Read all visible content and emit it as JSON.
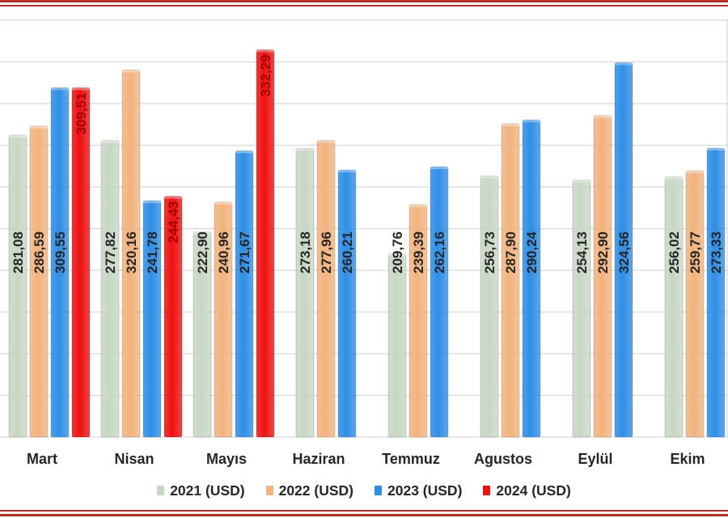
{
  "chart_data": {
    "type": "bar",
    "categories": [
      "Mart",
      "Nisan",
      "Mayıs",
      "Haziran",
      "Temmuz",
      "Agustos",
      "Eylül",
      "Ekim"
    ],
    "series": [
      {
        "name": "2021 (USD)",
        "color": "#c8d7c4",
        "values": [
          281.08,
          277.82,
          222.9,
          273.18,
          209.76,
          256.73,
          254.13,
          256.02
        ],
        "labels": [
          "281,08",
          "277,82",
          "222,90",
          "273,18",
          "209,76",
          "256,73",
          "254,13",
          "256,02"
        ]
      },
      {
        "name": "2022 (USD)",
        "color": "#f2b37e",
        "values": [
          286.59,
          320.16,
          240.96,
          277.96,
          239.39,
          287.9,
          292.9,
          259.77
        ],
        "labels": [
          "286,59",
          "320,16",
          "240,96",
          "277,96",
          "239,39",
          "287,90",
          "292,90",
          "259,77"
        ]
      },
      {
        "name": "2023 (USD)",
        "color": "#2f8ee6",
        "values": [
          309.55,
          241.78,
          271.67,
          260.21,
          262.16,
          290.24,
          324.56,
          273.33
        ],
        "labels": [
          "309,55",
          "241,78",
          "271,67",
          "260,21",
          "262,16",
          "290,24",
          "324,56",
          "273,33"
        ]
      },
      {
        "name": "2024 (USD)",
        "color": "#ee1111",
        "values": [
          309.51,
          244.43,
          332.29,
          null,
          null,
          null,
          null,
          null
        ],
        "labels": [
          "309,51",
          "244,43",
          "332,29",
          null,
          null,
          null,
          null,
          null
        ]
      }
    ],
    "ylim": [
      100,
      350
    ],
    "grid": true,
    "legend_position": "bottom",
    "value_label_orientation": "vertical"
  },
  "colors": {
    "border": "#c62828",
    "grid": "#d9d9d9",
    "text": "#262626",
    "label_on_red": "#a30000"
  }
}
